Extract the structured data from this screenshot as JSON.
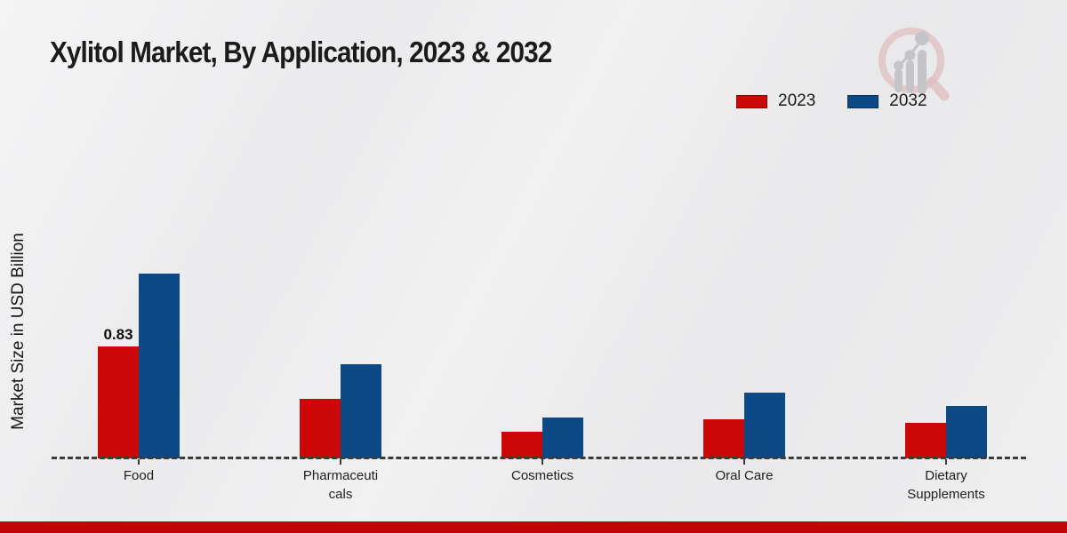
{
  "page": {
    "title": "Xylitol Market, By Application, 2023 & 2032",
    "bottom_bar_color": "#c10606",
    "background_color": "#ebebed",
    "logo_icon": "magnifier-bar-chart-logo"
  },
  "legend": [
    {
      "label": "2023",
      "color": "#cc0707"
    },
    {
      "label": "2032",
      "color": "#0d4a85"
    }
  ],
  "chart_data": {
    "type": "bar",
    "title": "Xylitol Market, By Application, 2023 & 2032",
    "ylabel": "Market Size in USD Billion",
    "xlabel": "",
    "units": "USD Billion",
    "categories": [
      "Food",
      "Pharmaceuticals",
      "Cosmetics",
      "Oral Care",
      "Dietary Supplements"
    ],
    "category_display": [
      "Food",
      "Pharmaceuti\ncals",
      "Cosmetics",
      "Oral Care",
      "Dietary\nSupplements"
    ],
    "series": [
      {
        "name": "2023",
        "color": "#cc0707",
        "values": [
          0.83,
          0.44,
          0.2,
          0.29,
          0.26
        ]
      },
      {
        "name": "2032",
        "color": "#0d4a85",
        "values": [
          1.37,
          0.7,
          0.3,
          0.49,
          0.39
        ]
      }
    ],
    "annotations": [
      {
        "category": "Food",
        "series": "2023",
        "text": "0.83"
      }
    ],
    "ylim": [
      0,
      1.5
    ],
    "grid": false,
    "baseline": "dashed",
    "legend_position": "top-right"
  }
}
